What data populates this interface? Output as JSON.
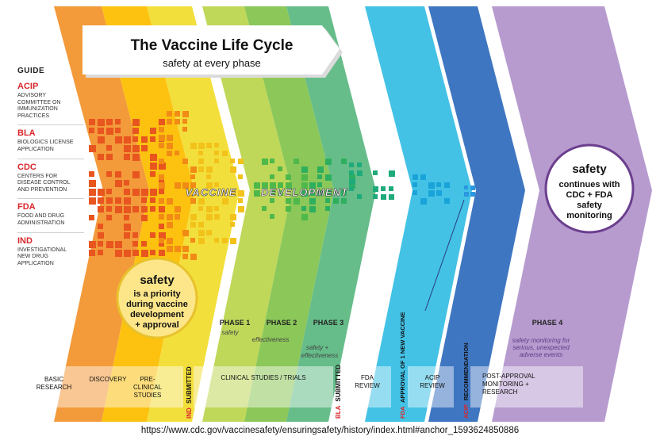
{
  "title": "The Vaccine Life Cycle",
  "subtitle": "safety at every phase",
  "guide": {
    "title": "GUIDE",
    "items": [
      {
        "abbr": "ACIP",
        "definition": [
          "ADVISORY",
          "COMMITTEE ON",
          "IMMUNIZATION",
          "PRACTICES"
        ]
      },
      {
        "abbr": "BLA",
        "definition": [
          "BIOLOGICS LICENSE",
          "APPLICATION"
        ]
      },
      {
        "abbr": "CDC",
        "definition": [
          "CENTERS FOR",
          "DISEASE CONTROL",
          "AND PREVENTION"
        ]
      },
      {
        "abbr": "FDA",
        "definition": [
          "FOOD AND DRUG",
          "ADMINISTRATION"
        ]
      },
      {
        "abbr": "IND",
        "definition": [
          "INVESTIGATIONAL",
          "NEW DRUG",
          "APPLICATION"
        ]
      }
    ]
  },
  "banner": {
    "word1": "VACCINE",
    "word2": "DEVELOPMENT"
  },
  "safety_circle_left": {
    "heading": "safety",
    "lines": [
      "is a priority",
      "during vaccine",
      "development",
      "+ approval"
    ]
  },
  "safety_circle_right": {
    "heading": "safety",
    "lines": [
      "continues with",
      "CDC + FDA",
      "safety",
      "monitoring"
    ]
  },
  "phases": [
    {
      "label": "PHASE 1",
      "note": [
        "safety"
      ]
    },
    {
      "label": "PHASE 2",
      "note": [
        "effectiveness"
      ]
    },
    {
      "label": "PHASE 3",
      "note": [
        "safety +",
        "effectiveness"
      ]
    },
    {
      "label": "PHASE 4",
      "note": [
        "safety monitoring for",
        "serious, unexpected",
        "adverse events"
      ]
    }
  ],
  "bottom_stages": [
    {
      "lines": [
        "BASIC",
        "RESEARCH"
      ]
    },
    {
      "lines": [
        "DISCOVERY"
      ]
    },
    {
      "lines": [
        "PRE-",
        "CLINICAL",
        "STUDIES"
      ]
    },
    {
      "lines": [
        "CLINICAL STUDIES / TRIALS"
      ]
    },
    {
      "lines": [
        "FDA",
        "REVIEW"
      ]
    },
    {
      "lines": [
        "ACIP",
        "REVIEW"
      ]
    },
    {
      "lines": [
        "POST-APPROVAL",
        "MONITORING +",
        "RESEARCH"
      ]
    }
  ],
  "milestones": [
    {
      "abbr": "IND",
      "text": "SUBMITTED"
    },
    {
      "abbr": "BLA",
      "text": "SUBMITTED"
    },
    {
      "abbr": "FDA",
      "text": "APPROVAL OF 1 NEW VACCINE"
    },
    {
      "abbr": "ACIP",
      "text": "RECOMMENDATION"
    }
  ],
  "source_url": "https://www.cdc.gov/vaccinesafety/ensuringsafety/history/index.html#anchor_1593624850886",
  "colors": {
    "basic_research": "#f39a3b",
    "discovery": "#fcc20f",
    "preclinical": "#f3df3c",
    "phase1": "#bfd85a",
    "phase2": "#8cc759",
    "phase3": "#66bd8a",
    "fda_review": "#43c2e6",
    "acip_review": "#3f76c1",
    "phase4": "#b79bcf",
    "alert_red": "#d9262b"
  }
}
